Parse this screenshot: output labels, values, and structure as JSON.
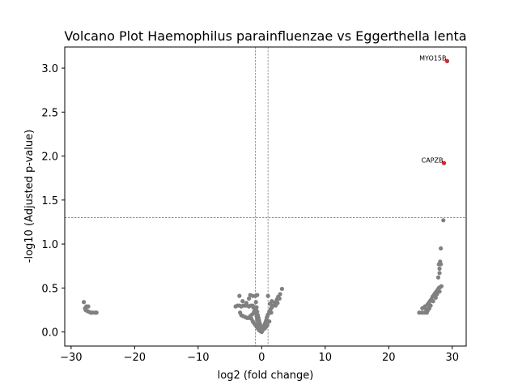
{
  "chart_data": {
    "type": "scatter",
    "title": "Volcano Plot Haemophilus parainfluenzae vs Eggerthella lenta",
    "xlabel": "log2 (fold change)",
    "ylabel": "-log10 (Adjusted p-value)",
    "xlim": [
      -31,
      32.2
    ],
    "ylim": [
      -0.16,
      3.24
    ],
    "xticks": [
      -30,
      -20,
      -10,
      0,
      10,
      20,
      30
    ],
    "yticks": [
      0.0,
      0.5,
      1.0,
      1.5,
      2.0,
      2.5,
      3.0
    ],
    "xtick_labels": [
      "−30",
      "−20",
      "−10",
      "0",
      "10",
      "20",
      "30"
    ],
    "ytick_labels": [
      "0.0",
      "0.5",
      "1.0",
      "1.5",
      "2.0",
      "2.5",
      "3.0"
    ],
    "threshold_lines": {
      "x": [
        -1,
        1
      ],
      "y": 1.3
    },
    "grid": false,
    "colors": {
      "not_significant": "#808080",
      "significant": "#e8202a",
      "threshold": "#808080"
    },
    "series": [
      {
        "points": [
          [
            -28.0,
            0.34
          ],
          [
            -27.6,
            0.29
          ],
          [
            -27.3,
            0.29
          ],
          [
            -27.8,
            0.27
          ],
          [
            -27.7,
            0.25
          ],
          [
            -27.5,
            0.24
          ],
          [
            -27.2,
            0.23
          ],
          [
            -26.9,
            0.22
          ],
          [
            -26.6,
            0.22
          ],
          [
            -26.2,
            0.22
          ],
          [
            -26.0,
            0.22
          ],
          [
            -4.1,
            0.29
          ],
          [
            -3.8,
            0.3
          ],
          [
            -3.5,
            0.3
          ],
          [
            -3.2,
            0.29
          ],
          [
            -2.9,
            0.3
          ],
          [
            -2.6,
            0.3
          ],
          [
            -2.3,
            0.3
          ],
          [
            -2.0,
            0.29
          ],
          [
            -1.7,
            0.3
          ],
          [
            -1.4,
            0.3
          ],
          [
            -3.5,
            0.41
          ],
          [
            -3.0,
            0.35
          ],
          [
            -2.4,
            0.33
          ],
          [
            -2.0,
            0.38
          ],
          [
            -1.8,
            0.42
          ],
          [
            -1.4,
            0.41
          ],
          [
            -1.0,
            0.41
          ],
          [
            -0.7,
            0.42
          ],
          [
            -3.4,
            0.22
          ],
          [
            -3.2,
            0.19
          ],
          [
            -2.9,
            0.18
          ],
          [
            -2.6,
            0.17
          ],
          [
            -2.3,
            0.16
          ],
          [
            -2.0,
            0.16
          ],
          [
            -1.8,
            0.18
          ],
          [
            -1.5,
            0.2
          ],
          [
            -1.2,
            0.23
          ],
          [
            -0.9,
            0.25
          ],
          [
            -1.6,
            0.15
          ],
          [
            -1.4,
            0.12
          ],
          [
            -1.2,
            0.1
          ],
          [
            -1.0,
            0.08
          ],
          [
            -0.8,
            0.06
          ],
          [
            -0.6,
            0.04
          ],
          [
            -0.4,
            0.02
          ],
          [
            -0.2,
            0.01
          ],
          [
            -1.3,
            0.28
          ],
          [
            -1.1,
            0.24
          ],
          [
            -0.9,
            0.21
          ],
          [
            -0.8,
            0.18
          ],
          [
            -0.7,
            0.15
          ],
          [
            -0.6,
            0.12
          ],
          [
            -0.5,
            0.1
          ],
          [
            -0.4,
            0.08
          ],
          [
            -0.3,
            0.06
          ],
          [
            -0.2,
            0.04
          ],
          [
            -0.9,
            0.34
          ],
          [
            -0.8,
            0.28
          ],
          [
            -0.7,
            0.23
          ],
          [
            -0.6,
            0.19
          ],
          [
            -0.5,
            0.16
          ],
          [
            -0.4,
            0.13
          ],
          [
            -0.3,
            0.1
          ],
          [
            -0.2,
            0.08
          ],
          [
            -0.1,
            0.05
          ],
          [
            0.0,
            0.0
          ],
          [
            0.1,
            0.01
          ],
          [
            0.2,
            0.03
          ],
          [
            0.3,
            0.05
          ],
          [
            0.4,
            0.07
          ],
          [
            0.5,
            0.09
          ],
          [
            0.6,
            0.11
          ],
          [
            0.7,
            0.13
          ],
          [
            0.8,
            0.16
          ],
          [
            0.9,
            0.18
          ],
          [
            1.0,
            0.2
          ],
          [
            1.2,
            0.23
          ],
          [
            1.4,
            0.26
          ],
          [
            1.6,
            0.28
          ],
          [
            1.8,
            0.3
          ],
          [
            2.0,
            0.32
          ],
          [
            2.2,
            0.34
          ],
          [
            2.4,
            0.37
          ],
          [
            2.6,
            0.4
          ],
          [
            2.9,
            0.43
          ],
          [
            2.8,
            0.38
          ],
          [
            2.5,
            0.33
          ],
          [
            2.2,
            0.3
          ],
          [
            1.3,
            0.32
          ],
          [
            1.6,
            0.35
          ],
          [
            1.0,
            0.41
          ],
          [
            1.5,
            0.22
          ],
          [
            1.2,
            0.12
          ],
          [
            0.9,
            0.08
          ],
          [
            0.7,
            0.06
          ],
          [
            0.5,
            0.04
          ],
          [
            3.2,
            0.49
          ],
          [
            24.8,
            0.22
          ],
          [
            25.2,
            0.22
          ],
          [
            25.6,
            0.22
          ],
          [
            26.0,
            0.22
          ],
          [
            25.3,
            0.27
          ],
          [
            25.7,
            0.29
          ],
          [
            25.9,
            0.26
          ],
          [
            26.1,
            0.31
          ],
          [
            26.3,
            0.33
          ],
          [
            26.5,
            0.35
          ],
          [
            26.7,
            0.37
          ],
          [
            26.9,
            0.4
          ],
          [
            27.1,
            0.42
          ],
          [
            27.3,
            0.44
          ],
          [
            27.5,
            0.46
          ],
          [
            27.7,
            0.48
          ],
          [
            27.9,
            0.5
          ],
          [
            28.1,
            0.51
          ],
          [
            28.3,
            0.52
          ],
          [
            26.6,
            0.3
          ],
          [
            26.4,
            0.27
          ],
          [
            26.2,
            0.25
          ],
          [
            27.0,
            0.35
          ],
          [
            27.4,
            0.39
          ],
          [
            27.6,
            0.43
          ],
          [
            28.0,
            0.46
          ],
          [
            27.8,
            0.62
          ],
          [
            28.0,
            0.67
          ],
          [
            28.0,
            0.72
          ],
          [
            27.9,
            0.77
          ],
          [
            28.2,
            0.77
          ],
          [
            28.1,
            0.8
          ],
          [
            28.2,
            0.95
          ],
          [
            28.6,
            1.27
          ]
        ]
      },
      {
        "points": [
          [
            29.2,
            3.08
          ],
          [
            28.7,
            1.92
          ]
        ],
        "labels": [
          "MYO15B",
          "CAPZB"
        ]
      }
    ]
  }
}
